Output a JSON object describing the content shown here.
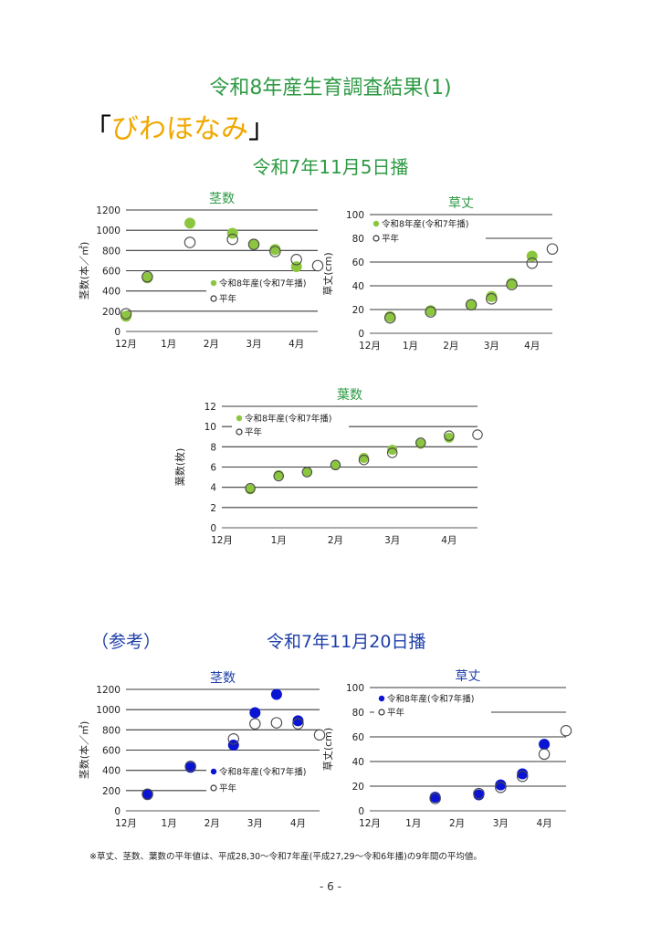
{
  "page": {
    "title": "令和8年産生育調査結果(1)",
    "variety_open": "「",
    "variety_name": "びわほなみ",
    "variety_close": "」",
    "section1_sowing": "令和7年11月5日播",
    "section2_ref": "（参考）",
    "section2_sowing": "令和7年11月20日播",
    "footnote": "※草丈、茎数、葉数の平年値は、平成28,30～令和7年産(平成27,29～令和6年播)の9年間の平均値。",
    "page_number": "- 6 -"
  },
  "colors": {
    "green_marker": "#8cc63f",
    "blue_marker": "#0a14d2",
    "title_green": "#2e9a44",
    "title_blue": "#1e3fa8",
    "variety_orange": "#f0a800"
  },
  "chart_data": [
    {
      "id": "s1-stems",
      "type": "scatter",
      "title": "茎数",
      "ylabel": "茎数(本／㎡)",
      "x_ticks": [
        "12月",
        "1月",
        "2月",
        "3月",
        "4月"
      ],
      "xlim": [
        0,
        4.5
      ],
      "ylim": [
        0,
        1200
      ],
      "y_step": 200,
      "grid": true,
      "marker_color": "#8cc63f",
      "legend_position": "right-middle",
      "series": [
        {
          "name": "令和8年産(令和7年播)",
          "style": "filled",
          "points": [
            [
              0,
              150
            ],
            [
              0.5,
              530
            ],
            [
              1.5,
              1070
            ],
            [
              2.5,
              970
            ],
            [
              3,
              860
            ],
            [
              3.5,
              810
            ],
            [
              4,
              640
            ]
          ]
        },
        {
          "name": "平年",
          "style": "open",
          "points": [
            [
              0,
              175
            ],
            [
              0.5,
              540
            ],
            [
              1.5,
              880
            ],
            [
              2.5,
              910
            ],
            [
              3,
              860
            ],
            [
              3.5,
              790
            ],
            [
              4,
              710
            ],
            [
              4.5,
              650
            ]
          ]
        }
      ]
    },
    {
      "id": "s1-height",
      "type": "scatter",
      "title": "草丈",
      "ylabel": "草丈(cm)",
      "x_ticks": [
        "12月",
        "1月",
        "2月",
        "3月",
        "4月"
      ],
      "xlim": [
        0,
        4.5
      ],
      "ylim": [
        0,
        100
      ],
      "y_step": 20,
      "grid": true,
      "marker_color": "#8cc63f",
      "legend_position": "top-left",
      "series": [
        {
          "name": "令和8年産(令和7年播)",
          "style": "filled",
          "points": [
            [
              0.5,
              14
            ],
            [
              1.5,
              19
            ],
            [
              2.5,
              24
            ],
            [
              3,
              31
            ],
            [
              3.5,
              42
            ],
            [
              4,
              65
            ]
          ]
        },
        {
          "name": "平年",
          "style": "open",
          "points": [
            [
              0.5,
              13
            ],
            [
              1.5,
              18
            ],
            [
              2.5,
              24
            ],
            [
              3,
              29
            ],
            [
              3.5,
              41
            ],
            [
              4,
              59
            ],
            [
              4.5,
              71
            ]
          ]
        }
      ]
    },
    {
      "id": "s1-leaves",
      "type": "scatter",
      "title": "葉数",
      "ylabel": "葉数(枚)",
      "x_ticks": [
        "12月",
        "1月",
        "2月",
        "3月",
        "4月"
      ],
      "xlim": [
        0,
        4.5
      ],
      "ylim": [
        0,
        12
      ],
      "y_step": 2,
      "grid": true,
      "marker_color": "#8cc63f",
      "legend_position": "top-left",
      "series": [
        {
          "name": "令和8年産(令和7年播)",
          "style": "filled",
          "points": [
            [
              0.5,
              3.8
            ],
            [
              1,
              5.2
            ],
            [
              1.5,
              5.5
            ],
            [
              2,
              6.2
            ],
            [
              2.5,
              6.9
            ],
            [
              3,
              7.7
            ],
            [
              3.5,
              8.3
            ],
            [
              4,
              8.9
            ]
          ]
        },
        {
          "name": "平年",
          "style": "open",
          "points": [
            [
              0.5,
              3.9
            ],
            [
              1,
              5.1
            ],
            [
              1.5,
              5.5
            ],
            [
              2,
              6.2
            ],
            [
              2.5,
              6.7
            ],
            [
              3,
              7.4
            ],
            [
              3.5,
              8.4
            ],
            [
              4,
              9.1
            ],
            [
              4.5,
              9.2
            ]
          ]
        }
      ]
    },
    {
      "id": "s2-stems",
      "type": "scatter",
      "title": "茎数",
      "ylabel": "茎数(本／㎡)",
      "x_ticks": [
        "12月",
        "1月",
        "2月",
        "3月",
        "4月"
      ],
      "xlim": [
        0,
        4.5
      ],
      "ylim": [
        0,
        1200
      ],
      "y_step": 200,
      "grid": true,
      "marker_color": "#0a14d2",
      "legend_position": "right-middle",
      "series": [
        {
          "name": "令和8年産(令和7年播)",
          "style": "filled",
          "points": [
            [
              0.5,
              160
            ],
            [
              1.5,
              430
            ],
            [
              2.5,
              650
            ],
            [
              3,
              970
            ],
            [
              3.5,
              1150
            ],
            [
              4,
              890
            ]
          ]
        },
        {
          "name": "平年",
          "style": "open",
          "points": [
            [
              0.5,
              165
            ],
            [
              1.5,
              440
            ],
            [
              2.5,
              710
            ],
            [
              3,
              860
            ],
            [
              3.5,
              870
            ],
            [
              4,
              860
            ],
            [
              4.5,
              750
            ]
          ]
        }
      ]
    },
    {
      "id": "s2-height",
      "type": "scatter",
      "title": "草丈",
      "ylabel": "草丈(cm)",
      "x_ticks": [
        "12月",
        "1月",
        "2月",
        "3月",
        "4月"
      ],
      "xlim": [
        0,
        4.5
      ],
      "ylim": [
        0,
        100
      ],
      "y_step": 20,
      "grid": true,
      "marker_color": "#0a14d2",
      "legend_position": "top-left",
      "series": [
        {
          "name": "令和8年産(令和7年播)",
          "style": "filled",
          "points": [
            [
              1.5,
              11
            ],
            [
              2.5,
              13
            ],
            [
              3,
              21
            ],
            [
              3.5,
              30
            ],
            [
              4,
              54
            ]
          ]
        },
        {
          "name": "平年",
          "style": "open",
          "points": [
            [
              1.5,
              10
            ],
            [
              2.5,
              14
            ],
            [
              3,
              19
            ],
            [
              3.5,
              28
            ],
            [
              4,
              46
            ],
            [
              4.5,
              65
            ]
          ]
        }
      ]
    }
  ]
}
